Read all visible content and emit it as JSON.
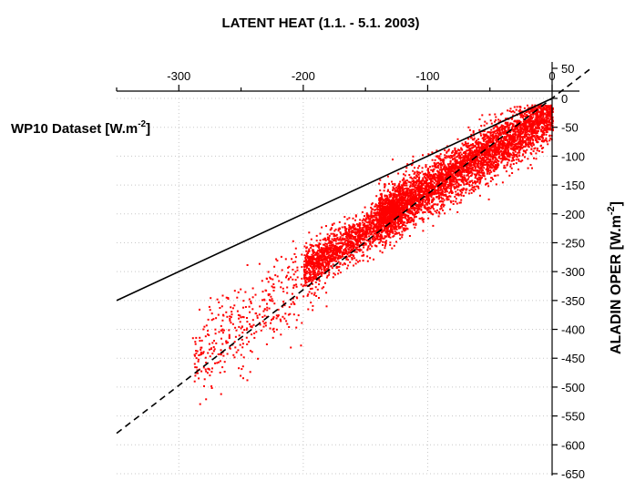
{
  "chart_data": {
    "type": "scatter",
    "title": "LATENT HEAT (1.1. - 5.1. 2003)",
    "xlabel": "WP10 Dataset [W.m",
    "xlabel_sup": "-2",
    "xlabel_end": "]",
    "ylabel": "ALADIN OPER [W.m",
    "ylabel_sup": "-2",
    "ylabel_end": "]",
    "xlim": [
      -350,
      30
    ],
    "ylim": [
      -650,
      50
    ],
    "xaxis_position": "top",
    "yaxis_position": "right",
    "x_ticks": [
      -300,
      -200,
      -100,
      0
    ],
    "x_tick_labels": [
      "-300",
      "-200",
      "-100",
      "0"
    ],
    "y_ticks": [
      50,
      0,
      -50,
      -100,
      -150,
      -200,
      -250,
      -300,
      -350,
      -400,
      -450,
      -500,
      -550,
      -600,
      -650
    ],
    "y_tick_labels": [
      "50",
      "0",
      "-50",
      "-100",
      "-150",
      "-200",
      "-250",
      "-300",
      "-350",
      "-400",
      "-450",
      "-500",
      "-550",
      "-600",
      "-650"
    ],
    "grid": true,
    "point_color": "#ff0000",
    "series": [
      {
        "type": "scatter_cloud",
        "clusters": [
          {
            "x_range": [
              -140,
              0
            ],
            "center_slope": 1.3,
            "center_intercept": -25,
            "spread": 45,
            "count": 4200
          },
          {
            "x_range": [
              -200,
              -120
            ],
            "center_slope": 1.35,
            "center_intercept": -25,
            "spread": 35,
            "count": 1600
          },
          {
            "x_range": [
              -290,
              -180
            ],
            "center_slope": 1.5,
            "center_intercept": -15,
            "spread": 70,
            "count": 450
          }
        ]
      },
      {
        "type": "line",
        "style": "solid",
        "color": "#000000",
        "x": [
          -350,
          0
        ],
        "y": [
          -350,
          0
        ]
      },
      {
        "type": "line",
        "style": "dashed",
        "color": "#000000",
        "x": [
          -350,
          30
        ],
        "y": [
          -580,
          50
        ]
      }
    ]
  }
}
